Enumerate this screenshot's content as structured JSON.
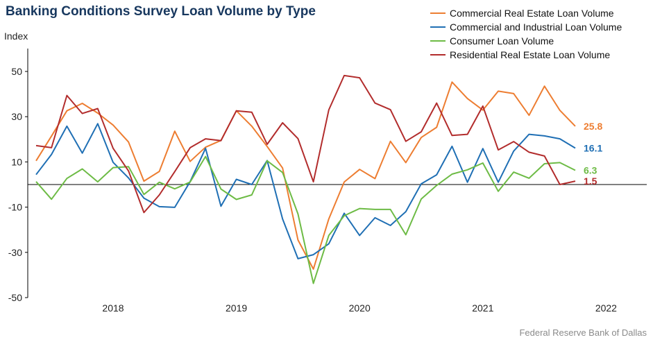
{
  "chart_data": {
    "type": "line",
    "title": "Banking Conditions Survey Loan Volume by Type",
    "ylabel": "Index",
    "source": "Federal Reserve Bank of Dallas",
    "ylim": [
      -50,
      55
    ],
    "yticks": [
      50,
      30,
      10,
      -10,
      -30,
      -50
    ],
    "xticks": [
      {
        "label": "2018",
        "x": 2018.25
      },
      {
        "label": "2019",
        "x": 2019.25
      },
      {
        "label": "2020",
        "x": 2020.25
      },
      {
        "label": "2021",
        "x": 2021.25
      },
      {
        "label": "2022",
        "x": 2022.25
      }
    ],
    "xlim": [
      2017.6,
      2022.85
    ],
    "x_start": 2017.625,
    "x_step": 0.125,
    "legend_position": "top-right",
    "series": [
      {
        "name": "Commercial Real Estate Loan Volume",
        "color": "#ed7d31",
        "end_label": "25.8",
        "values": [
          10.5,
          21.4,
          32.6,
          35.9,
          31.6,
          26.3,
          18.8,
          1.5,
          5.8,
          23.6,
          10.2,
          16.5,
          19.5,
          32.6,
          25.8,
          16.8,
          7.3,
          -24.5,
          -37.4,
          -15.2,
          1.1,
          6.7,
          2.6,
          19.1,
          9.7,
          20.8,
          25.3,
          45.3,
          38.0,
          32.9,
          41.3,
          40.2,
          30.6,
          43.5,
          32.8,
          25.8
        ]
      },
      {
        "name": "Commercial and Industrial Loan Volume",
        "color": "#1f6fb4",
        "end_label": "16.1",
        "values": [
          4.4,
          13.3,
          25.8,
          13.9,
          26.9,
          9.8,
          2.9,
          -6.0,
          -9.8,
          -10.1,
          1.3,
          16.0,
          -9.6,
          2.3,
          0.0,
          10.6,
          -15.2,
          -32.8,
          -31.0,
          -26.2,
          -12.7,
          -22.5,
          -14.7,
          -18.1,
          -12.0,
          0.3,
          4.3,
          16.9,
          1.0,
          15.9,
          1.0,
          14.8,
          22.2,
          21.5,
          20.2,
          16.1
        ]
      },
      {
        "name": "Consumer Loan Volume",
        "color": "#6dbb45",
        "end_label": "6.3",
        "values": [
          1.3,
          -6.5,
          2.7,
          6.9,
          1.2,
          7.5,
          7.9,
          -4.4,
          1.0,
          -1.9,
          1.1,
          12.4,
          -2.0,
          -6.6,
          -4.6,
          10.5,
          5.3,
          -13.0,
          -43.7,
          -22.5,
          -13.8,
          -10.6,
          -11.0,
          -11.0,
          -22.2,
          -6.4,
          -0.4,
          4.6,
          6.5,
          9.5,
          -3.0,
          5.5,
          2.8,
          9.2,
          9.7,
          6.3
        ]
      },
      {
        "name": "Residential Real Estate Loan Volume",
        "color": "#b22c2c",
        "end_label": "1.5",
        "values": [
          17.2,
          16.3,
          39.4,
          31.4,
          33.6,
          16.0,
          6.0,
          -12.4,
          -4.6,
          5.7,
          16.3,
          20.2,
          19.4,
          32.6,
          32.0,
          17.8,
          27.3,
          20.3,
          1.2,
          33.0,
          48.2,
          47.2,
          36.0,
          33.1,
          19.1,
          23.3,
          36.0,
          21.7,
          22.2,
          34.7,
          15.3,
          19.0,
          14.3,
          12.6,
          0.0,
          1.5
        ]
      }
    ]
  }
}
